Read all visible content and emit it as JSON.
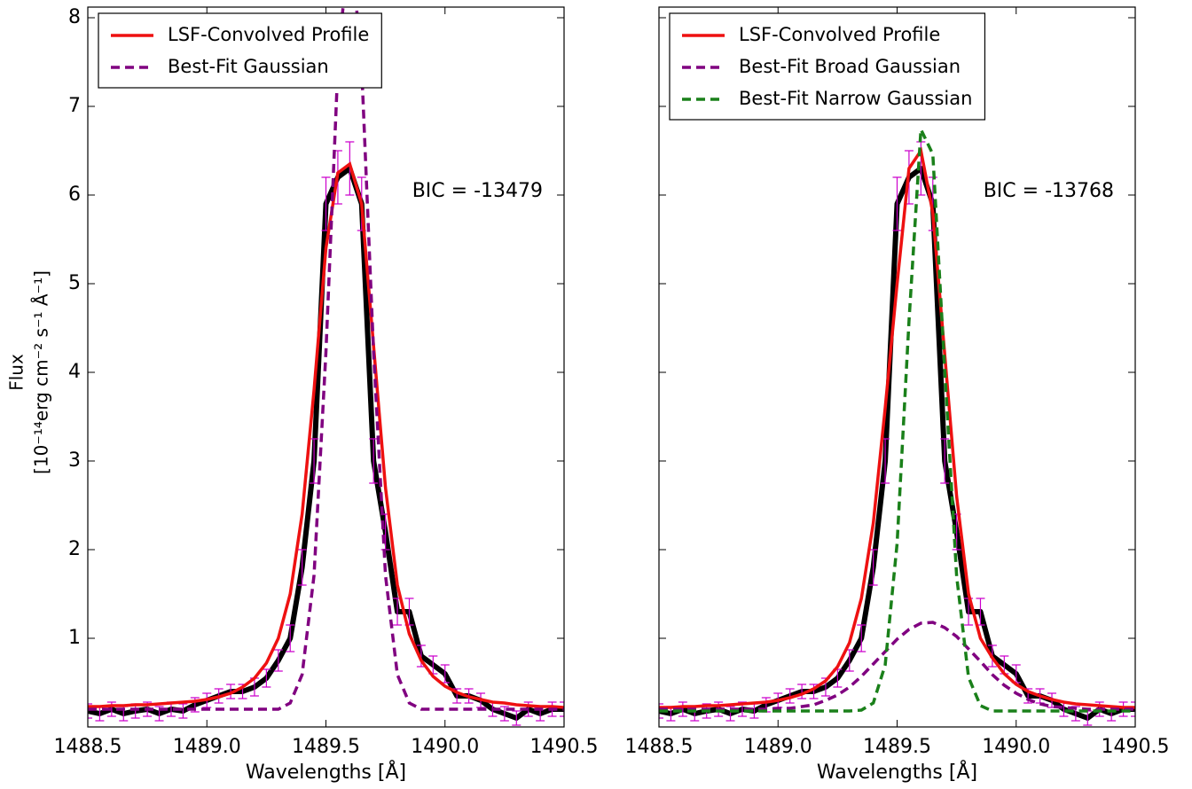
{
  "chart_data": [
    {
      "type": "line",
      "xlabel": "Wavelengths [Å]",
      "ylabel": [
        "Flux",
        "[10⁻¹⁴erg cm⁻² s⁻¹ Å⁻¹]"
      ],
      "annotation": "BIC = -13479",
      "xlim": [
        1488.5,
        1490.5
      ],
      "xticks": [
        1488.5,
        {
          "value": 1489,
          "label": "1489.0"
        },
        1489.5,
        {
          "value": 1490,
          "label": "1490.0"
        },
        1490.5
      ],
      "ylim": [
        0,
        8.12
      ],
      "yticks": [
        1,
        2,
        3,
        4,
        5,
        6,
        7,
        8
      ],
      "legend": "upper left",
      "x": [
        1488.5,
        1488.55,
        1488.6,
        1488.65,
        1488.7,
        1488.75,
        1488.8,
        1488.85,
        1488.9,
        1488.95,
        1489,
        1489.05,
        1489.1,
        1489.15,
        1489.2,
        1489.25,
        1489.3,
        1489.35,
        1489.4,
        1489.45,
        1489.5,
        1489.55,
        1489.6,
        1489.65,
        1489.7,
        1489.75,
        1489.8,
        1489.85,
        1489.9,
        1489.95,
        1490,
        1490.05,
        1490.1,
        1490.15,
        1490.2,
        1490.25,
        1490.3,
        1490.35,
        1490.4,
        1490.45,
        1490.5
      ],
      "observed": {
        "color": "#000000",
        "error_color": "#cc00cc",
        "values": [
          0.18,
          0.15,
          0.2,
          0.15,
          0.18,
          0.2,
          0.15,
          0.2,
          0.18,
          0.25,
          0.3,
          0.35,
          0.4,
          0.4,
          0.45,
          0.55,
          0.75,
          1.0,
          1.8,
          3.0,
          5.9,
          6.2,
          6.3,
          5.9,
          3.0,
          2.2,
          1.3,
          1.3,
          0.8,
          0.7,
          0.6,
          0.35,
          0.35,
          0.3,
          0.2,
          0.15,
          0.1,
          0.2,
          0.15,
          0.2,
          0.2
        ],
        "errors": [
          0.08,
          0.08,
          0.08,
          0.08,
          0.08,
          0.08,
          0.08,
          0.08,
          0.08,
          0.08,
          0.08,
          0.08,
          0.08,
          0.08,
          0.1,
          0.1,
          0.12,
          0.15,
          0.2,
          0.25,
          0.3,
          0.3,
          0.3,
          0.3,
          0.25,
          0.2,
          0.15,
          0.15,
          0.12,
          0.1,
          0.1,
          0.08,
          0.08,
          0.08,
          0.08,
          0.08,
          0.08,
          0.08,
          0.08,
          0.08,
          0.08
        ]
      },
      "series": [
        {
          "name": "LSF-Convolved Profile",
          "color": "#ee1111",
          "dashed": false,
          "values": [
            0.23,
            0.23,
            0.24,
            0.24,
            0.25,
            0.25,
            0.26,
            0.27,
            0.28,
            0.29,
            0.31,
            0.34,
            0.38,
            0.45,
            0.55,
            0.72,
            1.0,
            1.5,
            2.4,
            3.8,
            5.4,
            6.25,
            6.35,
            5.9,
            4.3,
            2.7,
            1.6,
            1.05,
            0.75,
            0.57,
            0.46,
            0.39,
            0.34,
            0.31,
            0.28,
            0.27,
            0.25,
            0.24,
            0.23,
            0.23,
            0.22
          ]
        },
        {
          "name": "Best-Fit Gaussian",
          "color": "#800080",
          "dashed": true,
          "values": [
            0.2,
            0.2,
            0.2,
            0.2,
            0.2,
            0.2,
            0.2,
            0.2,
            0.2,
            0.2,
            0.2,
            0.2,
            0.2,
            0.2,
            0.2,
            0.2,
            0.2,
            0.27,
            0.59,
            1.71,
            4.23,
            7.44,
            9.0,
            7.44,
            4.23,
            1.71,
            0.59,
            0.27,
            0.2,
            0.2,
            0.2,
            0.2,
            0.2,
            0.2,
            0.2,
            0.2,
            0.2,
            0.2,
            0.2,
            0.2,
            0.2
          ]
        }
      ]
    },
    {
      "type": "line",
      "xlabel": "Wavelengths [Å]",
      "annotation": "BIC = -13768",
      "xlim": [
        1488.5,
        1490.5
      ],
      "xticks": [
        1488.5,
        {
          "value": 1489,
          "label": "1489.0"
        },
        1489.5,
        {
          "value": 1490,
          "label": "1490.0"
        },
        1490.5
      ],
      "ylim": [
        0,
        8.12
      ],
      "legend": "upper left",
      "x": [
        1488.5,
        1488.55,
        1488.6,
        1488.65,
        1488.7,
        1488.75,
        1488.8,
        1488.85,
        1488.9,
        1488.95,
        1489,
        1489.05,
        1489.1,
        1489.15,
        1489.2,
        1489.25,
        1489.3,
        1489.35,
        1489.4,
        1489.45,
        1489.5,
        1489.55,
        1489.6,
        1489.65,
        1489.7,
        1489.75,
        1489.8,
        1489.85,
        1489.9,
        1489.95,
        1490,
        1490.05,
        1490.1,
        1490.15,
        1490.2,
        1490.25,
        1490.3,
        1490.35,
        1490.4,
        1490.45,
        1490.5
      ],
      "observed": {
        "color": "#000000",
        "error_color": "#cc00cc",
        "values": [
          0.18,
          0.15,
          0.2,
          0.15,
          0.18,
          0.2,
          0.15,
          0.2,
          0.18,
          0.25,
          0.3,
          0.35,
          0.4,
          0.4,
          0.45,
          0.55,
          0.75,
          1.0,
          1.8,
          3.0,
          5.9,
          6.2,
          6.3,
          5.9,
          3.0,
          2.2,
          1.3,
          1.3,
          0.8,
          0.7,
          0.6,
          0.35,
          0.35,
          0.3,
          0.2,
          0.15,
          0.1,
          0.2,
          0.15,
          0.2,
          0.2
        ],
        "errors": [
          0.08,
          0.08,
          0.08,
          0.08,
          0.08,
          0.08,
          0.08,
          0.08,
          0.08,
          0.08,
          0.08,
          0.08,
          0.08,
          0.08,
          0.1,
          0.1,
          0.12,
          0.15,
          0.2,
          0.25,
          0.3,
          0.3,
          0.3,
          0.3,
          0.25,
          0.2,
          0.15,
          0.15,
          0.12,
          0.1,
          0.1,
          0.08,
          0.08,
          0.08,
          0.08,
          0.08,
          0.08,
          0.08,
          0.08,
          0.08,
          0.08
        ]
      },
      "series": [
        {
          "name": "LSF-Convolved Profile",
          "color": "#ee1111",
          "dashed": false,
          "values": [
            0.22,
            0.22,
            0.23,
            0.23,
            0.24,
            0.24,
            0.25,
            0.26,
            0.27,
            0.28,
            0.3,
            0.33,
            0.37,
            0.43,
            0.52,
            0.68,
            0.95,
            1.45,
            2.3,
            3.6,
            5.0,
            6.3,
            6.5,
            5.8,
            4.2,
            2.6,
            1.5,
            1.0,
            0.78,
            0.6,
            0.48,
            0.4,
            0.35,
            0.31,
            0.28,
            0.26,
            0.25,
            0.24,
            0.23,
            0.22,
            0.22
          ]
        },
        {
          "name": "Best-Fit Broad Gaussian",
          "color": "#800080",
          "dashed": true,
          "values": [
            0.2,
            0.2,
            0.2,
            0.2,
            0.2,
            0.2,
            0.2,
            0.2,
            0.2,
            0.2,
            0.21,
            0.21,
            0.23,
            0.25,
            0.3,
            0.36,
            0.45,
            0.57,
            0.71,
            0.85,
            0.99,
            1.1,
            1.17,
            1.18,
            1.12,
            1.02,
            0.88,
            0.74,
            0.59,
            0.47,
            0.38,
            0.31,
            0.26,
            0.23,
            0.22,
            0.21,
            0.2,
            0.2,
            0.2,
            0.2,
            0.2
          ]
        },
        {
          "name": "Best-Fit Narrow Gaussian",
          "color": "#1a801a",
          "dashed": true,
          "values": [
            0.18,
            0.18,
            0.18,
            0.18,
            0.18,
            0.18,
            0.18,
            0.18,
            0.18,
            0.18,
            0.18,
            0.18,
            0.18,
            0.18,
            0.18,
            0.18,
            0.18,
            0.19,
            0.27,
            0.7,
            2.07,
            4.58,
            6.74,
            6.46,
            4.03,
            1.7,
            0.56,
            0.24,
            0.18,
            0.18,
            0.18,
            0.18,
            0.18,
            0.18,
            0.18,
            0.18,
            0.18,
            0.18,
            0.18,
            0.18,
            0.18
          ]
        }
      ]
    }
  ]
}
